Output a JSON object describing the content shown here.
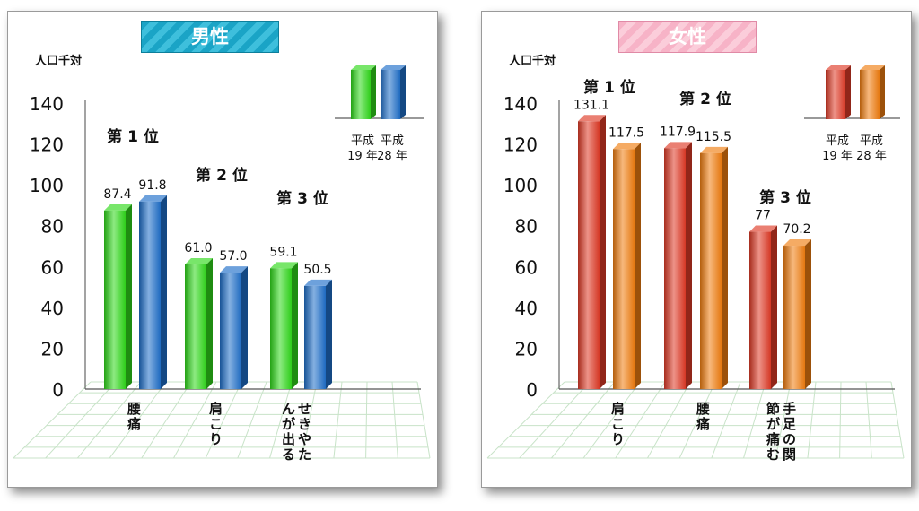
{
  "chart_data": [
    {
      "type": "bar",
      "title": "男性",
      "ylabel": "人口千対",
      "ylim": [
        0,
        140
      ],
      "yticks": [
        0,
        20,
        40,
        60,
        80,
        100,
        120,
        140
      ],
      "legend": [
        "平成\n19 年",
        "平成\n28 年"
      ],
      "series_colors": [
        "#2fd81a",
        "#1f6fc9"
      ],
      "categories": [
        {
          "rank": "第 1 位",
          "label": "腰痛",
          "values": [
            87.4,
            91.8
          ],
          "value_labels": [
            "87.4",
            "91.8"
          ]
        },
        {
          "rank": "第 2 位",
          "label": "肩こり",
          "values": [
            61.0,
            57.0
          ],
          "value_labels": [
            "61.0",
            "57.0"
          ]
        },
        {
          "rank": "第 3 位",
          "label": "せきやたんが出る",
          "values": [
            59.1,
            50.5
          ],
          "value_labels": [
            "59.1",
            "50.5"
          ]
        }
      ]
    },
    {
      "type": "bar",
      "title": "女性",
      "ylabel": "人口千対",
      "ylim": [
        0,
        140
      ],
      "yticks": [
        0,
        20,
        40,
        60,
        80,
        100,
        120,
        140
      ],
      "legend": [
        "平成\n19 年",
        "平成\n28 年"
      ],
      "series_colors": [
        "#df3a26",
        "#f07d10"
      ],
      "categories": [
        {
          "rank": "第 1 位",
          "label": "肩こり",
          "values": [
            131.1,
            117.5
          ],
          "value_labels": [
            "131.1",
            "117.5"
          ]
        },
        {
          "rank": "第 2 位",
          "label": "腰痛",
          "values": [
            117.9,
            115.5
          ],
          "value_labels": [
            "117.9",
            "115.5"
          ]
        },
        {
          "rank": "第 3 位",
          "label": "手足の関節が痛む",
          "values": [
            77,
            70.2
          ],
          "value_labels": [
            "77",
            "70.2"
          ]
        }
      ]
    }
  ]
}
